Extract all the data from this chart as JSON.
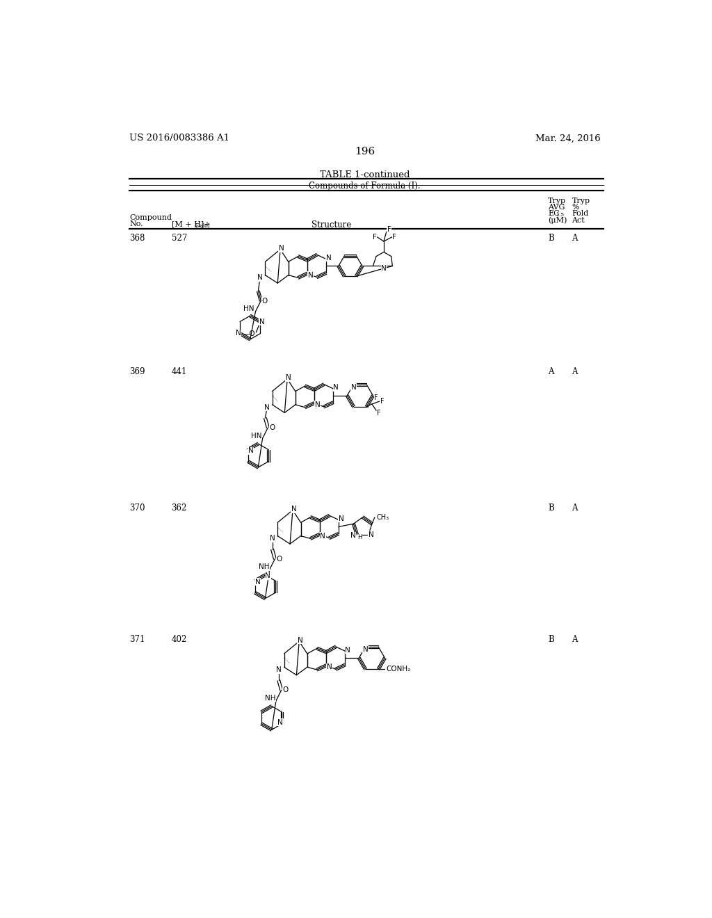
{
  "page_left_text": "US 2016/0083386 A1",
  "page_right_text": "Mar. 24, 2016",
  "page_number": "196",
  "table_title": "TABLE 1-continued",
  "table_subtitle": "Compounds of Formula (I).",
  "rows": [
    {
      "no": "368",
      "mh": "527",
      "tryp_avg": "B",
      "tryp_fold": "A"
    },
    {
      "no": "369",
      "mh": "441",
      "tryp_avg": "A",
      "tryp_fold": "A"
    },
    {
      "no": "370",
      "mh": "362",
      "tryp_avg": "B",
      "tryp_fold": "A"
    },
    {
      "no": "371",
      "mh": "402",
      "tryp_avg": "B",
      "tryp_fold": "A"
    }
  ],
  "row_tops": [
    230,
    480,
    735,
    980
  ],
  "background_color": "#ffffff"
}
